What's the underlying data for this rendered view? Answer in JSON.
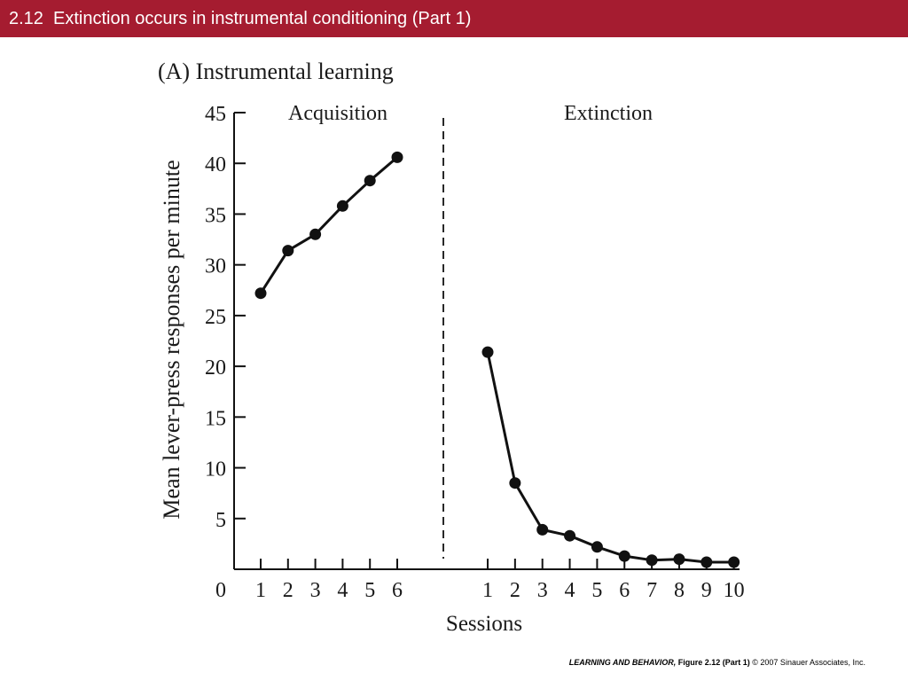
{
  "slide": {
    "title": "2.12  Extinction occurs in instrumental conditioning (Part 1)",
    "header_color": "#a51c30"
  },
  "footer": {
    "book": "LEARNING AND BEHAVIOR,",
    "figure": "Figure 2.12 (Part 1)",
    "copyright": "© 2007 Sinauer Associates, Inc."
  },
  "chart_data": {
    "type": "line",
    "title": "(A)  Instrumental learning",
    "xlabel": "Sessions",
    "ylabel": "Mean lever-press responses per minute",
    "ylim": [
      0,
      45
    ],
    "yticks": [
      5,
      10,
      15,
      20,
      25,
      30,
      35,
      40,
      45
    ],
    "origin_label": "0",
    "grid": false,
    "divider": "dashed vertical line between phases",
    "panels": [
      {
        "name": "Acquisition",
        "x": [
          1,
          2,
          3,
          4,
          5,
          6
        ],
        "values": [
          27.2,
          31.4,
          33.0,
          35.8,
          38.3,
          40.6
        ]
      },
      {
        "name": "Extinction",
        "x": [
          1,
          2,
          3,
          4,
          5,
          6,
          7,
          8,
          9,
          10
        ],
        "values": [
          21.4,
          8.5,
          3.9,
          3.3,
          2.2,
          1.3,
          0.9,
          1.0,
          0.7,
          0.7
        ]
      }
    ],
    "colors": {
      "line": "#111111",
      "marker": "#111111"
    }
  }
}
